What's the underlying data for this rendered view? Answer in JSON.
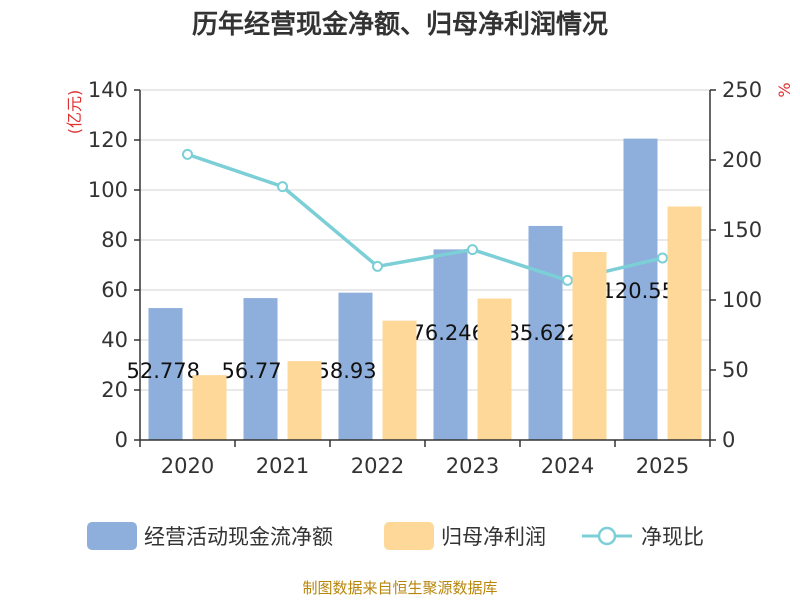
{
  "title": "历年经营现金净额、归母净利润情况",
  "source": "制图数据来自恒生聚源数据库",
  "colors": {
    "cash": "#8eaedb",
    "profit": "#fed899",
    "ratio": "#7ccfd6",
    "unit_text": "#e03030",
    "source_text": "#b8860b"
  },
  "chart_data": {
    "type": "bar",
    "categories": [
      "2020",
      "2021",
      "2022",
      "2023",
      "2024",
      "2025"
    ],
    "series": [
      {
        "name": "经营活动现金流净额",
        "type": "bar",
        "axis": "left",
        "values": [
          52.778,
          56.77,
          58.93,
          76.246,
          85.622,
          120.55
        ]
      },
      {
        "name": "归母净利润",
        "type": "bar",
        "axis": "left",
        "values": [
          25.9,
          31.5,
          47.7,
          56.6,
          75.2,
          93.4
        ]
      },
      {
        "name": "净现比",
        "type": "line",
        "axis": "right",
        "values": [
          204,
          181,
          124,
          136,
          114,
          130
        ]
      }
    ],
    "data_labels": [
      "52.778",
      "56.77",
      "58.93",
      "76.246",
      "85.622",
      "120.55"
    ],
    "y_left": {
      "unit": "(亿元)",
      "ylim": [
        0,
        140
      ],
      "ticks": [
        "0",
        "20",
        "40",
        "60",
        "80",
        "100",
        "120",
        "140"
      ]
    },
    "y_right": {
      "unit": "%",
      "ylim": [
        0,
        250
      ],
      "ticks": [
        "0",
        "50",
        "100",
        "150",
        "200",
        "250"
      ]
    },
    "grid": true,
    "legend_position": "bottom"
  }
}
